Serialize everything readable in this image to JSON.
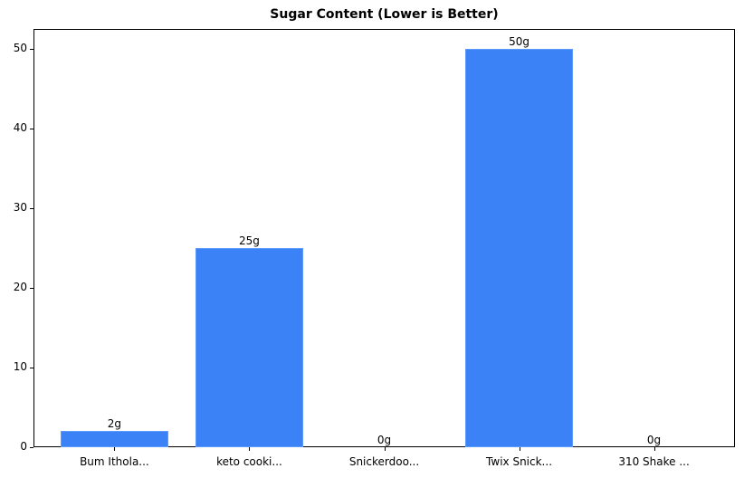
{
  "chart_data": {
    "type": "bar",
    "title": "Sugar Content (Lower is Better)",
    "xlabel": "",
    "ylabel": "",
    "categories": [
      "Bum Ithola...",
      "keto cooki...",
      "Snickerdoo...",
      "Twix Snick...",
      "310 Shake ..."
    ],
    "values": [
      2,
      25,
      0,
      50,
      0
    ],
    "data_labels": [
      "2g",
      "25g",
      "0g",
      "50g",
      "0g"
    ],
    "ylim": [
      0,
      52.5
    ],
    "yticks": [
      0,
      10,
      20,
      30,
      40,
      50
    ],
    "grid": false,
    "legend": null,
    "bar_color": "#3b82f6"
  }
}
